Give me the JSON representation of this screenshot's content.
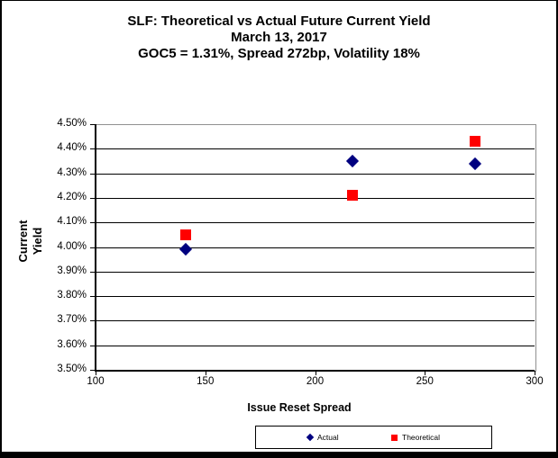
{
  "title": {
    "line1": "SLF: Theoretical vs Actual Future Current Yield",
    "line2": "March 13, 2017",
    "line3": "GOC5 = 1.31%, Spread 272bp, Volatility 18%"
  },
  "chart_data": {
    "type": "scatter",
    "title": "SLF: Theoretical vs Actual Future Current Yield",
    "subtitle": "March 13, 2017",
    "subtitle2": "GOC5 = 1.31%, Spread 272bp, Volatility 18%",
    "xlabel": "Issue Reset Spread",
    "ylabel": "Current Yield",
    "ylabel_lines": [
      "Current",
      "Yield"
    ],
    "xlim": [
      100,
      300
    ],
    "ylim": [
      3.5,
      4.5
    ],
    "x_tick_values": [
      100,
      150,
      200,
      250,
      300
    ],
    "x_tick_labels": [
      "100",
      "150",
      "200",
      "250",
      "300"
    ],
    "y_tick_values": [
      4.5,
      4.4,
      4.3,
      4.2,
      4.1,
      4.0,
      3.9,
      3.8,
      3.7,
      3.6,
      3.5
    ],
    "y_tick_labels": [
      "4.50%",
      "4.40%",
      "4.30%",
      "4.20%",
      "4.10%",
      "4.00%",
      "3.90%",
      "3.80%",
      "3.70%",
      "3.60%",
      "3.50%"
    ],
    "grid": "horizontal",
    "legend_position": "bottom",
    "series": [
      {
        "name": "Actual",
        "marker": "diamond",
        "color": "#000080",
        "x": [
          141,
          217,
          273
        ],
        "y": [
          3.99,
          4.35,
          4.34
        ]
      },
      {
        "name": "Theoretical",
        "marker": "square",
        "color": "#FF0000",
        "x": [
          141,
          217,
          273
        ],
        "y": [
          4.05,
          4.21,
          4.43
        ]
      }
    ]
  },
  "colors": {
    "actual": "#000080",
    "theoretical": "#FF0000",
    "gridline": "#000000",
    "plot_border": "#909090",
    "frame_border": "#000000"
  }
}
